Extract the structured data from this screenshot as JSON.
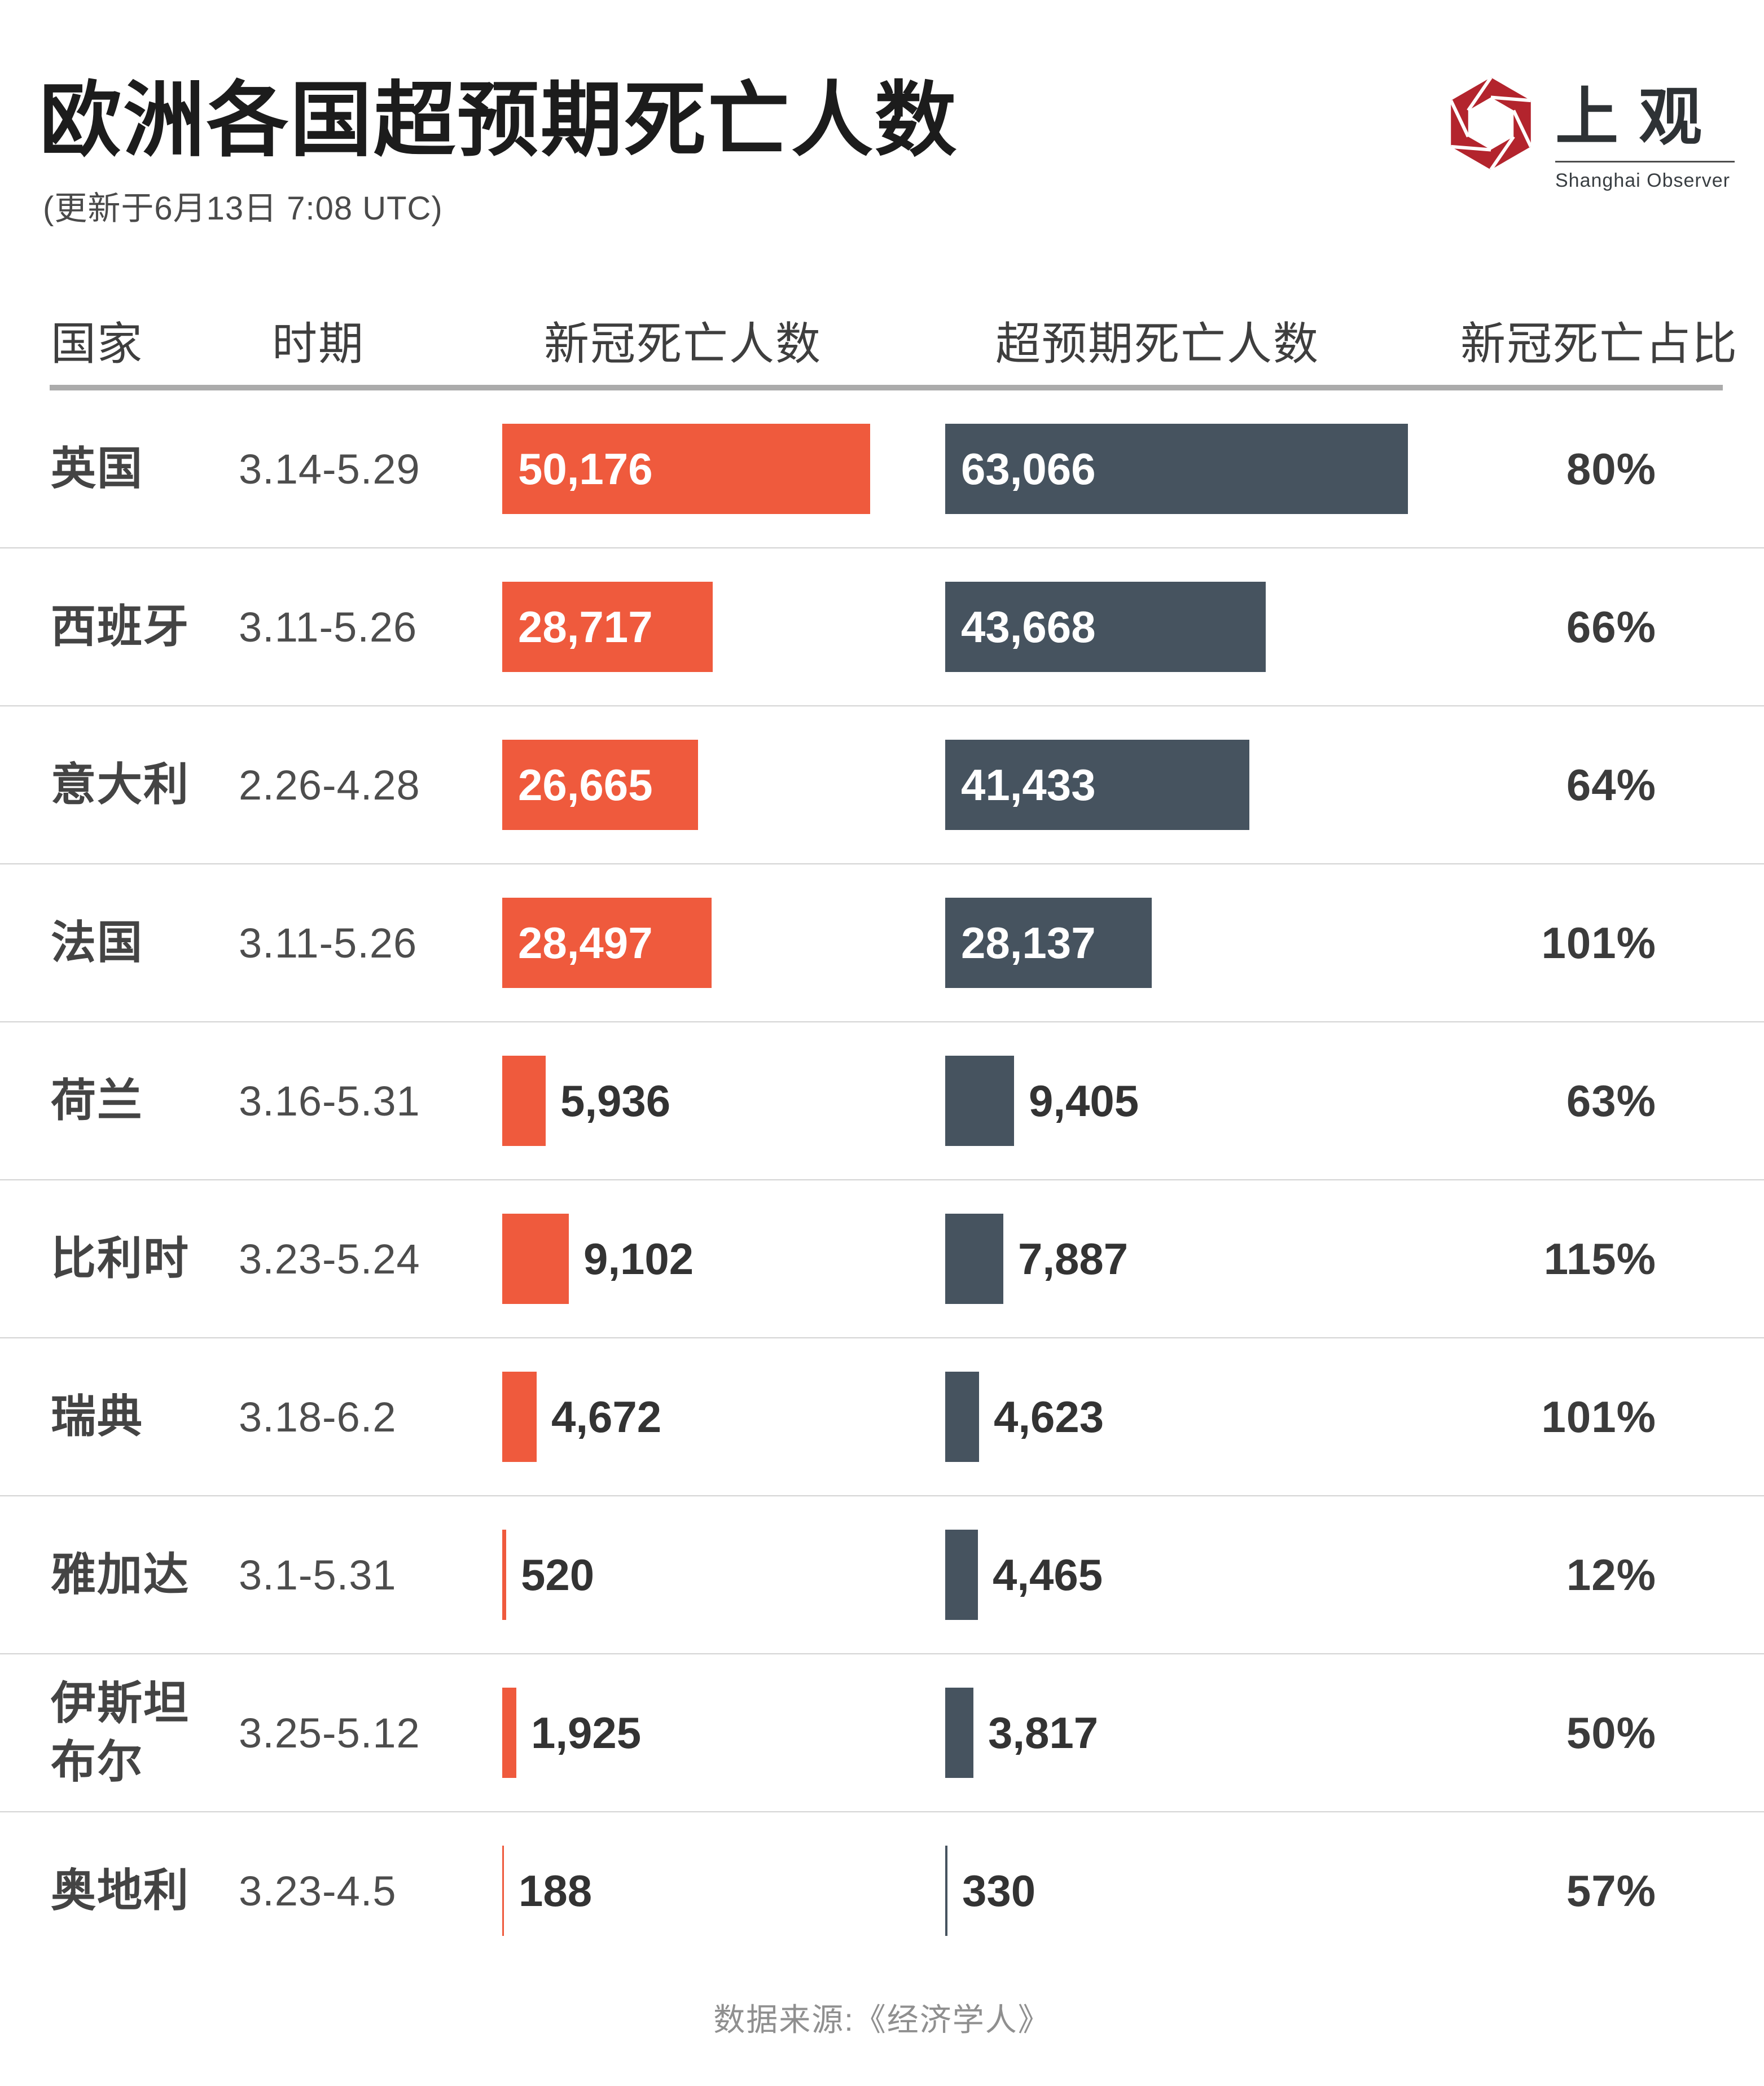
{
  "page": {
    "title": "欧洲各国超预期死亡人数",
    "subtitle": "(更新于6月13日 7:08 UTC)",
    "footer": "数据来源:《经济学人》"
  },
  "logo": {
    "name": "上观",
    "subname": "Shanghai Observer",
    "brand_color": "#B3242D",
    "text_color": "#2E3235"
  },
  "columns": {
    "country": "国家",
    "period": "时期",
    "covid": "新冠死亡人数",
    "excess": "超预期死亡人数",
    "ratio": "新冠死亡占比"
  },
  "colors": {
    "covid_bar": "#EF5A3D",
    "excess_bar": "#46535F",
    "bar_label_inside": "#FFFFFF",
    "bar_label_outside": "#333333"
  },
  "chart_data": {
    "type": "bar",
    "orientation": "horizontal",
    "title": "欧洲各国超预期死亡人数",
    "subtitle": "(更新于6月13日 7:08 UTC)",
    "source": "数据来源:《经济学人》",
    "categories": [
      "英国",
      "西班牙",
      "意大利",
      "法国",
      "荷兰",
      "比利时",
      "瑞典",
      "雅加达",
      "伊斯坦布尔",
      "奥地利"
    ],
    "periods": [
      "3.14-5.29",
      "3.11-5.26",
      "2.26-4.28",
      "3.11-5.26",
      "3.16-5.31",
      "3.23-5.24",
      "3.18-6.2",
      "3.1-5.31",
      "3.25-5.12",
      "3.23-4.5"
    ],
    "series": [
      {
        "name": "新冠死亡人数",
        "color": "#EF5A3D",
        "values": [
          50176,
          28717,
          26665,
          28497,
          5936,
          9102,
          4672,
          520,
          1925,
          188
        ],
        "labels": [
          "50,176",
          "28,717",
          "26,665",
          "28,497",
          "5,936",
          "9,102",
          "4,672",
          "520",
          "1,925",
          "188"
        ]
      },
      {
        "name": "超预期死亡人数",
        "color": "#46535F",
        "values": [
          63066,
          43668,
          41433,
          28137,
          9405,
          7887,
          4623,
          4465,
          3817,
          330
        ],
        "labels": [
          "63,066",
          "43,668",
          "41,433",
          "28,137",
          "9,405",
          "7,887",
          "4,623",
          "4,465",
          "3,817",
          "330"
        ]
      }
    ],
    "ratios": [
      "80%",
      "66%",
      "64%",
      "101%",
      "63%",
      "115%",
      "101%",
      "12%",
      "50%",
      "57%"
    ],
    "xmax": 63066,
    "grid": false,
    "legend": "column-headers"
  }
}
